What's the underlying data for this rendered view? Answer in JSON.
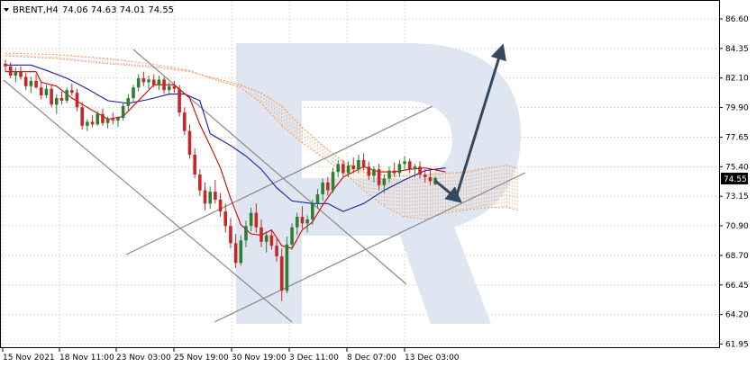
{
  "header": {
    "symbol": "BRENT,H4",
    "ohlc": "74.06 74.63 74.01 74.55"
  },
  "price_badge": "74.55",
  "colors": {
    "bull_candle": "#2e7d32",
    "bear_candle": "#c62828",
    "tenkan": "#d50000",
    "kijun": "#1a1aa6",
    "cloud_line": "#f0a060",
    "cloud_fill_bear": "#e6a0c8",
    "cloud_fill_bull": "#f4b27a",
    "channel": "#8a8a8a",
    "arrow": "#34495e",
    "watermark": "#dfe6f2",
    "grid": "#d8d8d8"
  },
  "chart_data": {
    "type": "candlestick",
    "y_ticks": [
      "86.60",
      "84.35",
      "82.10",
      "79.90",
      "77.65",
      "75.40",
      "73.15",
      "70.90",
      "68.70",
      "66.45",
      "64.20",
      "61.95"
    ],
    "x_ticks": [
      "15 Nov 2021",
      "18 Nov 11:00",
      "23 Nov 03:00",
      "25 Nov 19:00",
      "30 Nov 19:00",
      "3 Dec 11:00",
      "8 Dec 07:00",
      "13 Dec 03:00"
    ],
    "ylim": [
      61.95,
      87.3
    ],
    "candles": [
      [
        83.2,
        83.5,
        82.6,
        83.0
      ],
      [
        83.0,
        83.3,
        82.1,
        82.3
      ],
      [
        82.3,
        82.9,
        81.8,
        82.6
      ],
      [
        82.6,
        83.0,
        82.0,
        82.2
      ],
      [
        82.2,
        82.5,
        81.2,
        81.5
      ],
      [
        81.5,
        82.2,
        81.0,
        81.9
      ],
      [
        81.9,
        82.4,
        81.3,
        81.4
      ],
      [
        81.4,
        81.8,
        80.5,
        80.8
      ],
      [
        80.8,
        81.6,
        80.6,
        81.3
      ],
      [
        81.3,
        81.6,
        79.9,
        80.1
      ],
      [
        80.1,
        80.9,
        79.4,
        80.6
      ],
      [
        80.6,
        81.1,
        80.1,
        80.4
      ],
      [
        80.4,
        81.4,
        80.2,
        81.2
      ],
      [
        81.2,
        81.7,
        80.8,
        81.0
      ],
      [
        81.0,
        81.3,
        79.6,
        79.9
      ],
      [
        79.9,
        80.3,
        78.2,
        78.5
      ],
      [
        78.5,
        79.0,
        78.1,
        78.8
      ],
      [
        78.8,
        79.3,
        78.4,
        78.6
      ],
      [
        78.6,
        79.6,
        78.5,
        79.4
      ],
      [
        79.4,
        79.8,
        78.5,
        78.7
      ],
      [
        78.7,
        79.2,
        78.3,
        79.0
      ],
      [
        79.0,
        79.5,
        78.6,
        78.9
      ],
      [
        78.9,
        79.2,
        78.4,
        79.1
      ],
      [
        79.1,
        80.2,
        78.9,
        80.0
      ],
      [
        80.0,
        80.9,
        79.6,
        80.6
      ],
      [
        80.6,
        81.6,
        80.3,
        81.4
      ],
      [
        81.4,
        82.4,
        81.1,
        82.1
      ],
      [
        82.1,
        82.6,
        81.5,
        81.8
      ],
      [
        81.8,
        82.3,
        81.3,
        82.0
      ],
      [
        82.0,
        82.4,
        81.4,
        81.6
      ],
      [
        81.6,
        82.3,
        81.2,
        82.0
      ],
      [
        82.0,
        82.2,
        80.9,
        81.2
      ],
      [
        81.2,
        81.8,
        80.8,
        81.5
      ],
      [
        81.5,
        81.9,
        81.0,
        81.3
      ],
      [
        81.3,
        81.6,
        79.2,
        79.5
      ],
      [
        79.5,
        79.9,
        77.8,
        78.1
      ],
      [
        78.1,
        78.6,
        76.0,
        76.3
      ],
      [
        76.3,
        76.8,
        74.5,
        74.8
      ],
      [
        74.8,
        75.2,
        73.2,
        73.6
      ],
      [
        73.6,
        74.2,
        72.1,
        72.6
      ],
      [
        72.6,
        73.9,
        72.2,
        73.5
      ],
      [
        73.5,
        74.4,
        72.6,
        72.9
      ],
      [
        72.9,
        73.4,
        71.6,
        72.0
      ],
      [
        72.0,
        72.6,
        70.4,
        70.9
      ],
      [
        70.9,
        71.5,
        69.2,
        69.6
      ],
      [
        69.6,
        70.3,
        67.7,
        68.1
      ],
      [
        68.1,
        70.2,
        67.9,
        69.8
      ],
      [
        69.8,
        71.3,
        69.3,
        70.9
      ],
      [
        70.9,
        72.3,
        70.5,
        71.9
      ],
      [
        71.9,
        72.6,
        70.4,
        70.8
      ],
      [
        70.8,
        71.4,
        69.3,
        69.7
      ],
      [
        69.7,
        70.5,
        68.9,
        70.2
      ],
      [
        70.2,
        70.6,
        69.1,
        69.4
      ],
      [
        69.4,
        69.9,
        68.2,
        68.6
      ],
      [
        68.6,
        69.2,
        65.2,
        66.0
      ],
      [
        66.0,
        70.1,
        65.8,
        69.5
      ],
      [
        69.5,
        71.1,
        69.1,
        70.8
      ],
      [
        70.8,
        71.9,
        70.2,
        71.6
      ],
      [
        71.6,
        72.4,
        70.7,
        71.1
      ],
      [
        71.1,
        71.7,
        70.4,
        71.4
      ],
      [
        71.4,
        72.9,
        71.0,
        72.6
      ],
      [
        72.6,
        73.7,
        72.2,
        73.3
      ],
      [
        73.3,
        74.5,
        72.8,
        74.2
      ],
      [
        74.2,
        74.6,
        73.2,
        73.6
      ],
      [
        73.6,
        75.3,
        73.4,
        75.0
      ],
      [
        75.0,
        75.9,
        74.6,
        75.6
      ],
      [
        75.6,
        75.9,
        74.6,
        74.9
      ],
      [
        74.9,
        75.8,
        74.6,
        75.5
      ],
      [
        75.5,
        76.1,
        74.9,
        75.2
      ],
      [
        75.2,
        76.3,
        74.9,
        75.9
      ],
      [
        75.9,
        76.4,
        75.1,
        75.4
      ],
      [
        75.4,
        75.8,
        74.4,
        74.7
      ],
      [
        74.7,
        75.4,
        74.2,
        75.2
      ],
      [
        75.2,
        75.6,
        73.6,
        74.0
      ],
      [
        74.0,
        74.8,
        73.4,
        74.5
      ],
      [
        74.5,
        75.4,
        74.2,
        75.1
      ],
      [
        75.1,
        75.7,
        74.6,
        74.9
      ],
      [
        74.9,
        75.9,
        74.6,
        75.6
      ],
      [
        75.6,
        76.2,
        75.2,
        75.8
      ],
      [
        75.8,
        76.0,
        74.9,
        75.2
      ],
      [
        75.2,
        75.6,
        74.6,
        75.4
      ],
      [
        75.4,
        75.8,
        74.5,
        74.8
      ],
      [
        74.8,
        75.2,
        74.2,
        74.6
      ],
      [
        74.6,
        75.1,
        74.0,
        74.3
      ],
      [
        74.06,
        74.63,
        74.01,
        74.55
      ]
    ],
    "tenkan": [
      [
        0,
        82.6
      ],
      [
        6,
        82.6
      ],
      [
        7,
        81.8
      ],
      [
        10,
        81.5
      ],
      [
        13,
        80.6
      ],
      [
        16,
        79.9
      ],
      [
        20,
        79.0
      ],
      [
        23,
        79.2
      ],
      [
        26,
        80.4
      ],
      [
        29,
        81.6
      ],
      [
        33,
        81.6
      ],
      [
        36,
        80.6
      ],
      [
        38,
        78.6
      ],
      [
        40,
        77.0
      ],
      [
        42,
        75.3
      ],
      [
        44,
        73.0
      ],
      [
        46,
        71.0
      ],
      [
        48,
        70.3
      ],
      [
        50,
        70.2
      ],
      [
        52,
        70.6
      ],
      [
        54,
        69.4
      ],
      [
        56,
        69.2
      ],
      [
        58,
        70.6
      ],
      [
        60,
        71.2
      ],
      [
        62,
        72.5
      ],
      [
        64,
        73.6
      ],
      [
        66,
        74.6
      ],
      [
        68,
        75.0
      ],
      [
        70,
        75.4
      ],
      [
        73,
        75.0
      ],
      [
        76,
        75.0
      ],
      [
        79,
        75.2
      ],
      [
        82,
        75.3
      ],
      [
        86,
        75.0
      ]
    ],
    "kijun": [
      [
        0,
        83.1
      ],
      [
        5,
        83.1
      ],
      [
        8,
        82.7
      ],
      [
        12,
        82.1
      ],
      [
        16,
        81.3
      ],
      [
        20,
        80.4
      ],
      [
        24,
        80.2
      ],
      [
        28,
        80.5
      ],
      [
        32,
        80.9
      ],
      [
        35,
        80.9
      ],
      [
        38,
        80.4
      ],
      [
        40,
        77.9
      ],
      [
        44,
        77.0
      ],
      [
        47,
        76.2
      ],
      [
        50,
        75.2
      ],
      [
        53,
        73.8
      ],
      [
        56,
        72.8
      ],
      [
        60,
        72.6
      ],
      [
        63,
        72.6
      ],
      [
        66,
        72.0
      ],
      [
        70,
        72.6
      ],
      [
        74,
        73.6
      ],
      [
        78,
        74.4
      ],
      [
        82,
        75.1
      ],
      [
        86,
        75.3
      ]
    ],
    "cloud_a": [
      [
        0,
        83.8
      ],
      [
        10,
        83.6
      ],
      [
        20,
        83.2
      ],
      [
        30,
        82.9
      ],
      [
        36,
        82.6
      ],
      [
        40,
        82.2
      ],
      [
        46,
        81.6
      ],
      [
        50,
        81.0
      ],
      [
        54,
        80.0
      ],
      [
        58,
        78.4
      ],
      [
        62,
        77.0
      ],
      [
        66,
        75.8
      ],
      [
        70,
        75.0
      ],
      [
        74,
        74.8
      ],
      [
        78,
        74.7
      ],
      [
        82,
        74.8
      ],
      [
        86,
        74.9
      ],
      [
        90,
        75.0
      ],
      [
        94,
        75.3
      ],
      [
        98,
        75.5
      ],
      [
        100,
        75.3
      ]
    ],
    "cloud_b": [
      [
        0,
        84.0
      ],
      [
        10,
        83.9
      ],
      [
        20,
        83.6
      ],
      [
        30,
        83.1
      ],
      [
        36,
        82.7
      ],
      [
        40,
        82.1
      ],
      [
        46,
        81.4
      ],
      [
        50,
        80.2
      ],
      [
        54,
        78.5
      ],
      [
        58,
        77.2
      ],
      [
        62,
        76.1
      ],
      [
        66,
        75.0
      ],
      [
        70,
        73.6
      ],
      [
        74,
        72.4
      ],
      [
        78,
        71.6
      ],
      [
        82,
        71.4
      ],
      [
        86,
        71.9
      ],
      [
        90,
        72.1
      ],
      [
        94,
        72.3
      ],
      [
        98,
        72.3
      ],
      [
        100,
        72.1
      ]
    ],
    "channel_down": [
      [
        [
          148,
          55
        ],
        [
          451,
          316
        ]
      ],
      [
        [
          4,
          89
        ],
        [
          324,
          358
        ]
      ]
    ],
    "channel_up": [
      [
        [
          140,
          283
        ],
        [
          480,
          118
        ]
      ],
      [
        [
          238,
          358
        ],
        [
          583,
          192
        ]
      ]
    ],
    "arrow_short": [
      [
        483,
        201
      ],
      [
        506,
        220
      ]
    ],
    "arrow_long": [
      [
        506,
        220
      ],
      [
        556,
        57
      ]
    ]
  }
}
